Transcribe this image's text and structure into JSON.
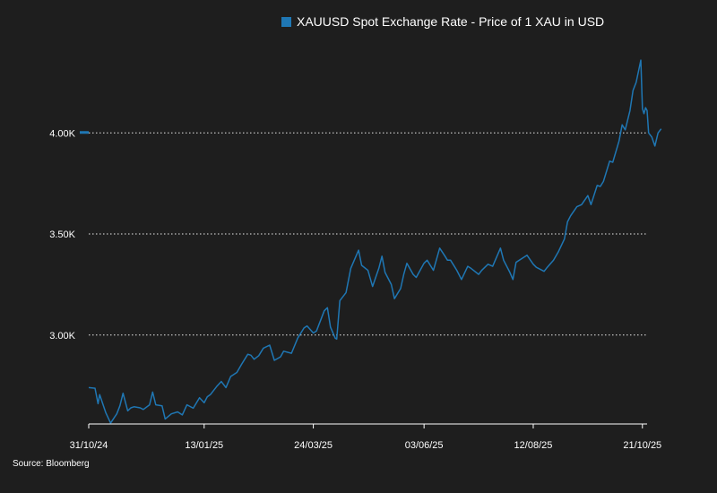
{
  "chart_data": {
    "type": "line",
    "title": "",
    "legend": {
      "position": "top",
      "entries": [
        "XAUUSD Spot Exchange Rate - Price of 1 XAU in USD"
      ]
    },
    "source": "Source: Bloomberg",
    "xlabel": "",
    "ylabel": "",
    "x_tick_labels": [
      "31/10/24",
      "13/01/25",
      "24/03/25",
      "03/06/25",
      "12/08/25",
      "21/10/25"
    ],
    "x_ticks": [
      "2024-10-31",
      "2025-01-13",
      "2025-03-24",
      "2025-06-03",
      "2025-08-12",
      "2025-10-21"
    ],
    "xlim": [
      "2024-10-31",
      "2025-10-24"
    ],
    "y_tick_labels": [
      "3.00K",
      "3.50K",
      "4.00K"
    ],
    "y_ticks": [
      3000,
      3500,
      4000
    ],
    "ylim": [
      2560,
      4480
    ],
    "grid": "horizontal dotted",
    "last_value_marker": 4000,
    "colors": {
      "series": "#1f77b4",
      "background": "#1e1e1e",
      "text": "#ffffff",
      "grid": "#ffffff"
    },
    "series": [
      {
        "name": "XAUUSD Spot Exchange Rate - Price of 1 XAU in USD",
        "points": [
          [
            "2024-10-31",
            2740
          ],
          [
            "2024-11-04",
            2737
          ],
          [
            "2024-11-06",
            2660
          ],
          [
            "2024-11-07",
            2705
          ],
          [
            "2024-11-11",
            2615
          ],
          [
            "2024-11-14",
            2565
          ],
          [
            "2024-11-18",
            2610
          ],
          [
            "2024-11-20",
            2650
          ],
          [
            "2024-11-22",
            2712
          ],
          [
            "2024-11-25",
            2625
          ],
          [
            "2024-11-27",
            2640
          ],
          [
            "2024-11-29",
            2645
          ],
          [
            "2024-12-03",
            2640
          ],
          [
            "2024-12-05",
            2632
          ],
          [
            "2024-12-09",
            2655
          ],
          [
            "2024-12-11",
            2718
          ],
          [
            "2024-12-13",
            2655
          ],
          [
            "2024-12-17",
            2650
          ],
          [
            "2024-12-19",
            2585
          ],
          [
            "2024-12-23",
            2610
          ],
          [
            "2024-12-27",
            2620
          ],
          [
            "2024-12-30",
            2605
          ],
          [
            "2025-01-02",
            2655
          ],
          [
            "2025-01-06",
            2638
          ],
          [
            "2025-01-10",
            2690
          ],
          [
            "2025-01-13",
            2665
          ],
          [
            "2025-01-15",
            2695
          ],
          [
            "2025-01-17",
            2705
          ],
          [
            "2025-01-21",
            2745
          ],
          [
            "2025-01-24",
            2770
          ],
          [
            "2025-01-27",
            2740
          ],
          [
            "2025-01-30",
            2795
          ],
          [
            "2025-02-03",
            2815
          ],
          [
            "2025-02-06",
            2855
          ],
          [
            "2025-02-10",
            2905
          ],
          [
            "2025-02-12",
            2900
          ],
          [
            "2025-02-14",
            2880
          ],
          [
            "2025-02-17",
            2898
          ],
          [
            "2025-02-20",
            2935
          ],
          [
            "2025-02-24",
            2950
          ],
          [
            "2025-02-27",
            2875
          ],
          [
            "2025-03-03",
            2892
          ],
          [
            "2025-03-05",
            2920
          ],
          [
            "2025-03-10",
            2910
          ],
          [
            "2025-03-14",
            2985
          ],
          [
            "2025-03-18",
            3035
          ],
          [
            "2025-03-20",
            3045
          ],
          [
            "2025-03-24",
            3010
          ],
          [
            "2025-03-26",
            3020
          ],
          [
            "2025-03-31",
            3120
          ],
          [
            "2025-04-02",
            3135
          ],
          [
            "2025-04-04",
            3040
          ],
          [
            "2025-04-07",
            2985
          ],
          [
            "2025-04-08",
            2980
          ],
          [
            "2025-04-10",
            3170
          ],
          [
            "2025-04-14",
            3210
          ],
          [
            "2025-04-17",
            3330
          ],
          [
            "2025-04-22",
            3420
          ],
          [
            "2025-04-24",
            3345
          ],
          [
            "2025-04-28",
            3320
          ],
          [
            "2025-05-01",
            3240
          ],
          [
            "2025-05-05",
            3330
          ],
          [
            "2025-05-07",
            3390
          ],
          [
            "2025-05-09",
            3310
          ],
          [
            "2025-05-13",
            3250
          ],
          [
            "2025-05-15",
            3180
          ],
          [
            "2025-05-19",
            3230
          ],
          [
            "2025-05-21",
            3300
          ],
          [
            "2025-05-23",
            3355
          ],
          [
            "2025-05-27",
            3300
          ],
          [
            "2025-05-29",
            3285
          ],
          [
            "2025-06-03",
            3355
          ],
          [
            "2025-06-05",
            3370
          ],
          [
            "2025-06-09",
            3320
          ],
          [
            "2025-06-13",
            3430
          ],
          [
            "2025-06-16",
            3395
          ],
          [
            "2025-06-18",
            3370
          ],
          [
            "2025-06-20",
            3370
          ],
          [
            "2025-06-24",
            3320
          ],
          [
            "2025-06-27",
            3275
          ],
          [
            "2025-07-01",
            3340
          ],
          [
            "2025-07-03",
            3330
          ],
          [
            "2025-07-08",
            3300
          ],
          [
            "2025-07-10",
            3320
          ],
          [
            "2025-07-14",
            3350
          ],
          [
            "2025-07-17",
            3340
          ],
          [
            "2025-07-22",
            3430
          ],
          [
            "2025-07-24",
            3370
          ],
          [
            "2025-07-28",
            3310
          ],
          [
            "2025-07-30",
            3275
          ],
          [
            "2025-08-01",
            3360
          ],
          [
            "2025-08-04",
            3375
          ],
          [
            "2025-08-08",
            3395
          ],
          [
            "2025-08-12",
            3350
          ],
          [
            "2025-08-14",
            3335
          ],
          [
            "2025-08-19",
            3315
          ],
          [
            "2025-08-21",
            3335
          ],
          [
            "2025-08-25",
            3370
          ],
          [
            "2025-08-28",
            3410
          ],
          [
            "2025-09-01",
            3475
          ],
          [
            "2025-09-03",
            3560
          ],
          [
            "2025-09-05",
            3590
          ],
          [
            "2025-09-09",
            3635
          ],
          [
            "2025-09-12",
            3645
          ],
          [
            "2025-09-16",
            3690
          ],
          [
            "2025-09-18",
            3645
          ],
          [
            "2025-09-22",
            3740
          ],
          [
            "2025-09-24",
            3735
          ],
          [
            "2025-09-26",
            3760
          ],
          [
            "2025-09-30",
            3860
          ],
          [
            "2025-10-02",
            3855
          ],
          [
            "2025-10-06",
            3960
          ],
          [
            "2025-10-08",
            4040
          ],
          [
            "2025-10-10",
            4015
          ],
          [
            "2025-10-13",
            4110
          ],
          [
            "2025-10-15",
            4210
          ],
          [
            "2025-10-17",
            4250
          ],
          [
            "2025-10-20",
            4360
          ],
          [
            "2025-10-21",
            4120
          ],
          [
            "2025-10-22",
            4095
          ],
          [
            "2025-10-23",
            4125
          ],
          [
            "2025-10-24",
            4110
          ],
          [
            "2025-10-25",
            4000
          ],
          [
            "2025-10-27",
            3980
          ],
          [
            "2025-10-29",
            3935
          ],
          [
            "2025-10-31",
            4000
          ],
          [
            "2025-11-02",
            4020
          ]
        ]
      }
    ]
  }
}
